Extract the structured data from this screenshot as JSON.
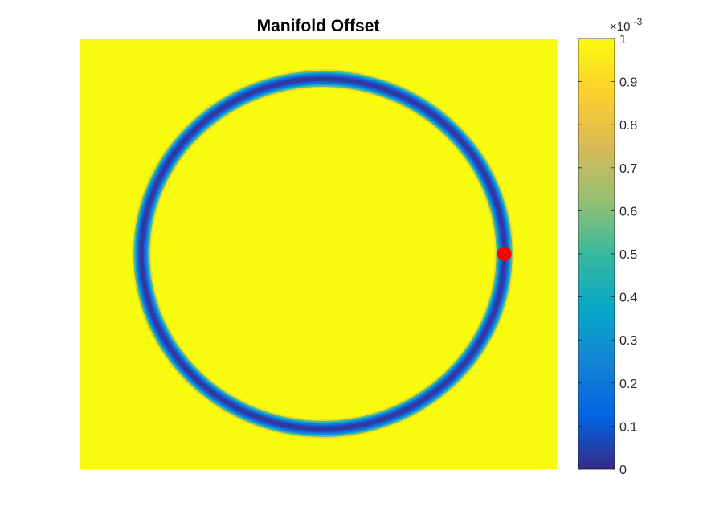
{
  "chart_data": {
    "type": "heatmap",
    "title": "Manifold Offset",
    "xlabel": "",
    "ylabel": "",
    "grid": false,
    "axes_visible": false,
    "colormap": "parula",
    "colorbar": {
      "position": "right",
      "clim": [
        0,
        0.001
      ],
      "multiplier_label": "×10",
      "multiplier_exponent": "-3",
      "ticks": [
        0,
        0.1,
        0.2,
        0.3,
        0.4,
        0.5,
        0.6,
        0.7,
        0.8,
        0.9,
        1
      ],
      "tick_labels": [
        "0",
        "0.1",
        "0.2",
        "0.3",
        "0.4",
        "0.5",
        "0.6",
        "0.7",
        "0.8",
        "0.9",
        "1"
      ]
    },
    "field": {
      "description_shape": "circle",
      "center": [
        0.51,
        0.5
      ],
      "radius": 0.38,
      "ring_value": 0,
      "background_value": 0.001,
      "note": "offset is near zero on the circular manifold and saturates at 1e-3 away from it"
    },
    "marker": {
      "color": "#ff0000",
      "position": [
        0.89,
        0.5
      ]
    }
  },
  "colors": {
    "background": "#ffffff",
    "marker": "#ff0000",
    "axis_line": "#262626"
  }
}
